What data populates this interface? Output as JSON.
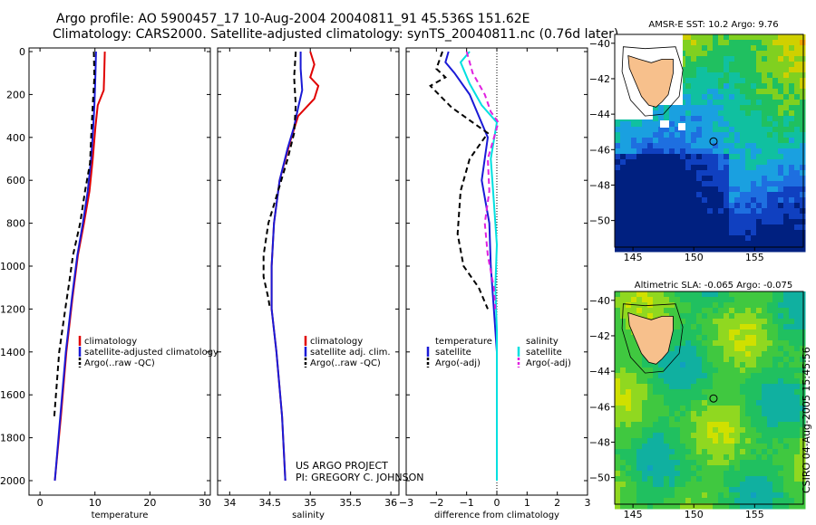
{
  "header": {
    "line1": "Argo profile: AO 5900457_17 10-Aug-2004 20040811_91 45.536S 151.62E",
    "line2": "Climatology: CARS2000. Satellite-adjusted climatology: synTS_20040811.nc (0.76d later)"
  },
  "colors": {
    "climatology": "#e00000",
    "satellite": "#1a1ad6",
    "argo": "#000000",
    "salinity_satellite": "#00e0e0",
    "salinity_argo": "#e020e0",
    "land": "#f7c08c"
  },
  "credits": {
    "project": "US ARGO PROJECT",
    "pi": "PI: GREGORY C. JOHNSON",
    "stamp": "CSIRO 04-Aug-2005 15:45:56"
  },
  "chart_data": [
    {
      "id": "temperature",
      "type": "line",
      "xlabel": "temperature",
      "ylabel": "",
      "xlim": [
        -2,
        31
      ],
      "ylim": [
        0,
        2050
      ],
      "y_inverted": true,
      "xticks": [
        0,
        10,
        20,
        30
      ],
      "yticks": [
        0,
        200,
        400,
        600,
        800,
        1000,
        1200,
        1400,
        1600,
        1800,
        2000
      ],
      "legend": [
        "climatology",
        "satellite-adjusted climatology",
        "Argo(..raw -QC)"
      ],
      "series": [
        {
          "name": "climatology",
          "style": "solid",
          "color": "#e00000",
          "x": [
            11.8,
            11.7,
            11.6,
            10.5,
            10.1,
            9.6,
            9.0,
            8.0,
            6.9,
            5.9,
            4.8,
            3.8,
            2.7
          ],
          "y": [
            0,
            100,
            180,
            250,
            350,
            500,
            650,
            800,
            950,
            1150,
            1400,
            1700,
            2000
          ]
        },
        {
          "name": "satellite-adjusted climatology",
          "style": "solid",
          "color": "#1a1ad6",
          "x": [
            10.2,
            10.1,
            10.0,
            9.9,
            9.7,
            9.3,
            8.7,
            7.8,
            6.8,
            5.8,
            4.7,
            3.7,
            2.7
          ],
          "y": [
            0,
            100,
            180,
            250,
            350,
            500,
            650,
            800,
            950,
            1150,
            1400,
            1700,
            2000
          ]
        },
        {
          "name": "Argo(..raw -QC)",
          "style": "dashed",
          "color": "#000000",
          "x": [
            9.8,
            9.9,
            9.6,
            9.3,
            9.1,
            8.2,
            7.3,
            6.0,
            5.3,
            4.6,
            3.5,
            2.6
          ],
          "y": [
            0,
            120,
            250,
            400,
            520,
            650,
            800,
            950,
            1080,
            1200,
            1400,
            1700
          ]
        }
      ]
    },
    {
      "id": "salinity",
      "type": "line",
      "xlabel": "salinity",
      "ylabel": "",
      "xlim": [
        33.85,
        36.1
      ],
      "ylim": [
        0,
        2050
      ],
      "y_inverted": true,
      "xticks": [
        34,
        34.5,
        35,
        35.5,
        36
      ],
      "yticks": [
        0,
        200,
        400,
        600,
        800,
        1000,
        1200,
        1400,
        1600,
        1800,
        2000
      ],
      "legend": [
        "climatology",
        "satellite adj. clim.",
        "Argo(..raw -QC)"
      ],
      "series": [
        {
          "name": "climatology",
          "style": "solid",
          "color": "#e00000",
          "x": [
            35.0,
            35.05,
            35.0,
            35.1,
            35.05,
            34.85,
            34.75,
            34.62,
            34.55,
            34.52,
            34.52,
            34.58,
            34.65,
            34.69
          ],
          "y": [
            0,
            60,
            120,
            160,
            220,
            300,
            420,
            600,
            800,
            1000,
            1200,
            1400,
            1700,
            2000
          ]
        },
        {
          "name": "satellite adj. clim.",
          "style": "solid",
          "color": "#1a1ad6",
          "x": [
            34.88,
            34.88,
            34.9,
            34.85,
            34.8,
            34.72,
            34.62,
            34.55,
            34.52,
            34.52,
            34.58,
            34.65,
            34.69
          ],
          "y": [
            0,
            80,
            180,
            260,
            350,
            450,
            600,
            800,
            1000,
            1200,
            1400,
            1700,
            2000
          ]
        },
        {
          "name": "Argo(..raw -QC)",
          "style": "dashed",
          "color": "#000000",
          "x": [
            34.82,
            34.8,
            34.82,
            34.8,
            34.72,
            34.6,
            34.48,
            34.42,
            34.42,
            34.48,
            34.5
          ],
          "y": [
            0,
            120,
            250,
            380,
            500,
            650,
            800,
            950,
            1050,
            1150,
            1200
          ]
        }
      ]
    },
    {
      "id": "difference",
      "type": "line",
      "xlabel": "difference from climatology",
      "ylabel": "",
      "xlim": [
        -3,
        3
      ],
      "ylim": [
        0,
        2050
      ],
      "y_inverted": true,
      "xticks": [
        -3,
        -2,
        -1,
        0,
        1,
        2,
        3
      ],
      "yticks": [
        0,
        200,
        400,
        600,
        800,
        1000,
        1200,
        1400,
        1600,
        1800,
        2000
      ],
      "legend": [
        "temperature",
        "satellite",
        "Argo(-adj)",
        "salinity",
        "satellite",
        "Argo(-adj)"
      ],
      "series": [
        {
          "name": "temperature satellite",
          "style": "solid",
          "color": "#1a1ad6",
          "x": [
            -1.6,
            -1.7,
            -1.4,
            -0.9,
            -0.6,
            -0.3,
            -0.5,
            -0.25,
            -0.2,
            -0.1,
            0.0,
            0.0,
            0.0
          ],
          "y": [
            0,
            50,
            100,
            200,
            300,
            400,
            600,
            800,
            1000,
            1200,
            1400,
            1700,
            2000
          ]
        },
        {
          "name": "temperature Argo(-adj)",
          "style": "dashed",
          "color": "#000000",
          "x": [
            -1.8,
            -2.0,
            -1.7,
            -2.2,
            -1.5,
            -0.3,
            -0.9,
            -1.2,
            -1.3,
            -1.1,
            -0.6,
            -0.3
          ],
          "y": [
            0,
            80,
            120,
            160,
            260,
            380,
            500,
            650,
            850,
            1000,
            1100,
            1200
          ]
        },
        {
          "name": "salinity satellite",
          "style": "solid",
          "color": "#00e0e0",
          "x": [
            -0.9,
            -1.2,
            -0.9,
            -0.5,
            0.0,
            -0.2,
            -0.1,
            0.0,
            -0.05,
            0.0,
            0.0,
            0.0
          ],
          "y": [
            0,
            50,
            150,
            250,
            330,
            500,
            700,
            900,
            1100,
            1300,
            1600,
            2000
          ]
        },
        {
          "name": "salinity Argo(-adj)",
          "style": "dashed",
          "color": "#e020e0",
          "x": [
            -1.0,
            -0.8,
            -0.4,
            -0.2,
            0.05,
            -0.3,
            -0.25,
            -0.4,
            -0.3,
            -0.1,
            -0.05
          ],
          "y": [
            0,
            100,
            200,
            280,
            330,
            500,
            650,
            800,
            950,
            1100,
            1200
          ]
        }
      ]
    }
  ],
  "maps": [
    {
      "id": "sst-map",
      "title": "AMSR-E SST: 10.2 Argo: 9.76",
      "type": "heatmap",
      "lon_ticks": [
        145,
        150,
        155
      ],
      "lat_ticks": [
        -40,
        -42,
        -44,
        -46,
        -48,
        -50
      ],
      "lon_range": [
        143.5,
        159
      ],
      "lat_range": [
        -51.5,
        -39.5
      ],
      "marker": {
        "lon": 151.62,
        "lat": -45.536
      },
      "palette": [
        "#002080",
        "#1040c0",
        "#1e6fe0",
        "#1aa0e0",
        "#10c0a0",
        "#20c060",
        "#80d020",
        "#d0d000",
        "#f0a000"
      ]
    },
    {
      "id": "sla-map",
      "title": "Altimetric SLA: -0.065 Argo: -0.075",
      "type": "heatmap",
      "lon_ticks": [
        145,
        150,
        155
      ],
      "lat_ticks": [
        -40,
        -42,
        -44,
        -46,
        -48,
        -50
      ],
      "lon_range": [
        143.5,
        159
      ],
      "lat_range": [
        -51.5,
        -39.5
      ],
      "marker": {
        "lon": 151.62,
        "lat": -45.536
      },
      "palette": [
        "#10a0c0",
        "#10b0a0",
        "#20c060",
        "#40c840",
        "#90d820",
        "#d0e000"
      ]
    }
  ]
}
